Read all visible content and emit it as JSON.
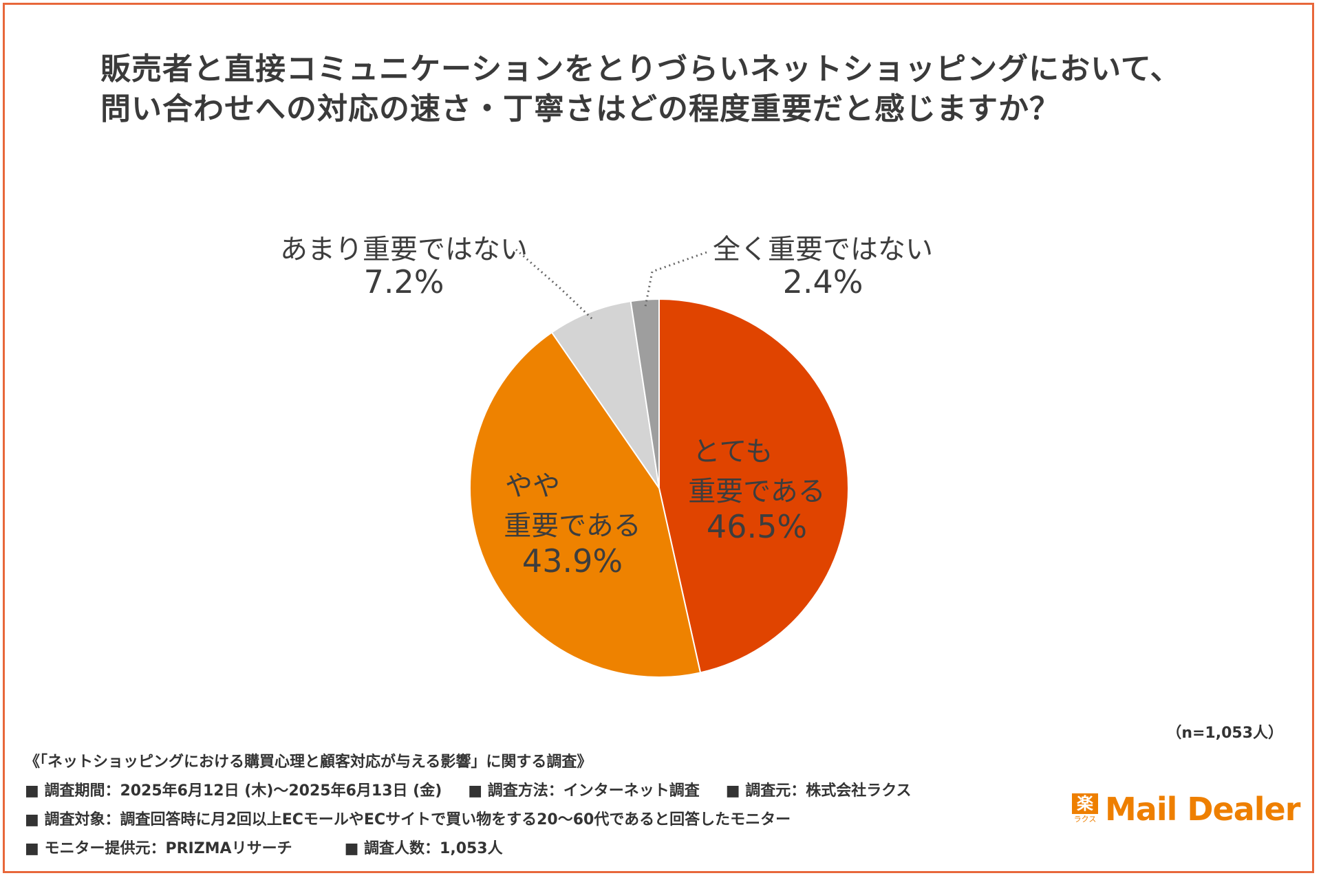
{
  "title_lines": [
    "販売者と直接コミュニケーションをとりづらいネットショッピングにおいて、",
    "問い合わせへの対応の速さ・丁寧さはどの程度重要だと感じますか？"
  ],
  "chart_data": {
    "type": "pie",
    "title": "販売者と直接コミュニケーションをとりづらいネットショッピングにおいて、問い合わせへの対応の速さ・丁寧さはどの程度重要だと感じますか？",
    "start": "12 o'clock, clockwise",
    "slices": [
      {
        "label_lines": [
          "とても",
          "重要である"
        ],
        "value": 46.5,
        "value_label": "46.5%",
        "color": "#e04400",
        "label_placement": "inside"
      },
      {
        "label_lines": [
          "やや",
          "重要である"
        ],
        "value": 43.9,
        "value_label": "43.9%",
        "color": "#ee8200",
        "label_placement": "inside"
      },
      {
        "label_lines": [
          "あまり重要ではない"
        ],
        "value": 7.2,
        "value_label": "7.2%",
        "color": "#d4d4d4",
        "label_placement": "outside-left"
      },
      {
        "label_lines": [
          "全く重要ではない"
        ],
        "value": 2.4,
        "value_label": "2.4%",
        "color": "#9e9e9e",
        "label_placement": "outside-right"
      }
    ]
  },
  "sample_note": "（n=1,053人）",
  "footer": {
    "survey_title": "《「ネットショッピングにおける購買心理と顧客対応が与える影響」に関する調査》",
    "period": "■ 調査期間：2025年6月12日 (木)〜2025年6月13日 (金)",
    "method": "■ 調査方法：インターネット調査",
    "source": "■ 調査元：株式会社ラクス",
    "target": "■ 調査対象：調査回答時に月2回以上ECモールやECサイトで買い物をする20〜60代であると回答したモニター",
    "provider": "■ モニター提供元：PRIZMAリサーチ",
    "count": "■ 調査人数：1,053人"
  },
  "logo": {
    "mark_top": "楽",
    "mark_bottom": "ラクス",
    "text": "Mail Dealer",
    "color": "#ee7f00"
  }
}
